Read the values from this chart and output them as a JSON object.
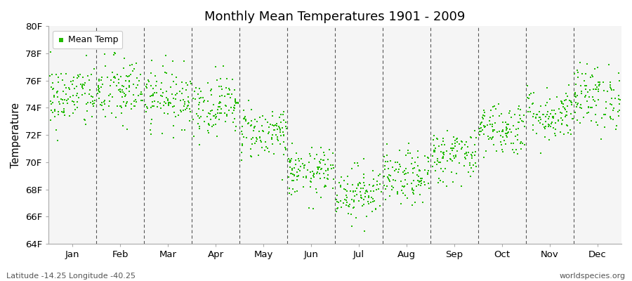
{
  "title": "Monthly Mean Temperatures 1901 - 2009",
  "ylabel": "Temperature",
  "xlabel_bottom_left": "Latitude -14.25 Longitude -40.25",
  "xlabel_bottom_right": "worldspecies.org",
  "legend_label": "Mean Temp",
  "marker_color": "#22bb00",
  "background_color": "#f5f5f5",
  "ylim": [
    64,
    80
  ],
  "ytick_labels": [
    "64F",
    "66F",
    "68F",
    "70F",
    "72F",
    "74F",
    "76F",
    "78F",
    "80F"
  ],
  "ytick_values": [
    64,
    66,
    68,
    70,
    72,
    74,
    76,
    78,
    80
  ],
  "months": [
    "Jan",
    "Feb",
    "Mar",
    "Apr",
    "May",
    "Jun",
    "Jul",
    "Aug",
    "Sep",
    "Oct",
    "Nov",
    "Dec"
  ],
  "month_centers": [
    0.5,
    1.5,
    2.5,
    3.5,
    4.5,
    5.5,
    6.5,
    7.5,
    8.5,
    9.5,
    10.5,
    11.5
  ],
  "month_means_f": [
    74.8,
    75.2,
    74.8,
    74.2,
    72.2,
    69.2,
    67.8,
    68.8,
    70.5,
    72.5,
    73.5,
    74.8
  ],
  "month_stds_f": [
    1.2,
    1.3,
    1.1,
    1.1,
    1.0,
    0.9,
    1.0,
    1.0,
    1.0,
    1.0,
    1.0,
    1.2
  ],
  "n_years": 109,
  "seed": 42
}
